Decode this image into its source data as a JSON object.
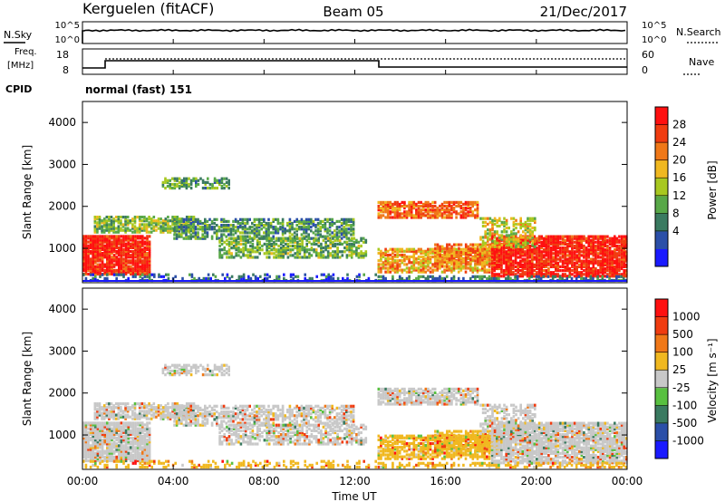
{
  "header": {
    "radar": "Kerguelen (fitACF)",
    "beam": "Beam 05",
    "date": "21/Dec/2017"
  },
  "top_panels": {
    "nsky_label": "N.Sky",
    "nsearch_label": "N.Search",
    "sky_ticks": [
      "10^5",
      "10^0"
    ],
    "search_ticks": [
      "10^5",
      "10^0"
    ],
    "freq_label_1": "Freq.",
    "freq_label_2": "[MHz]",
    "freq_ticks": [
      "18",
      "8"
    ],
    "nave_label": "Nave",
    "nave_ticks": [
      "60",
      "0"
    ],
    "cpid_label": "CPID",
    "cpid_text": "normal (fast) 151"
  },
  "chart_data": [
    {
      "type": "heatmap",
      "name": "power",
      "ylabel": "Slant Range [km]",
      "yticks": [
        1000,
        2000,
        3000,
        4000
      ],
      "colorbar_label": "Power [dB]",
      "colorbar_ticks": [
        "28",
        "24",
        "20",
        "16",
        "12",
        "8",
        "4"
      ],
      "colors": [
        "#1a1aff",
        "#2b4fa8",
        "#3a7a60",
        "#58a848",
        "#a8c820",
        "#f0b820",
        "#f07818",
        "#f03c10",
        "#ff1010"
      ]
    },
    {
      "type": "heatmap",
      "name": "velocity",
      "ylabel": "Slant Range [km]",
      "yticks": [
        1000,
        2000,
        3000,
        4000
      ],
      "colorbar_label": "Velocity [m s⁻¹]",
      "colorbar_ticks": [
        "1000",
        "500",
        "100",
        "25",
        "-25",
        "-100",
        "-500",
        "-1000"
      ],
      "colors": [
        "#1a1aff",
        "#2b4fa8",
        "#3a7a60",
        "#58c040",
        "#c8c8c8",
        "#f0b820",
        "#f07818",
        "#f03c10",
        "#ff1010"
      ]
    }
  ],
  "x_axis": {
    "ticks": [
      "00:00",
      "04:00",
      "08:00",
      "12:00",
      "16:00",
      "20:00",
      "00:00"
    ],
    "label": "Time UT"
  }
}
